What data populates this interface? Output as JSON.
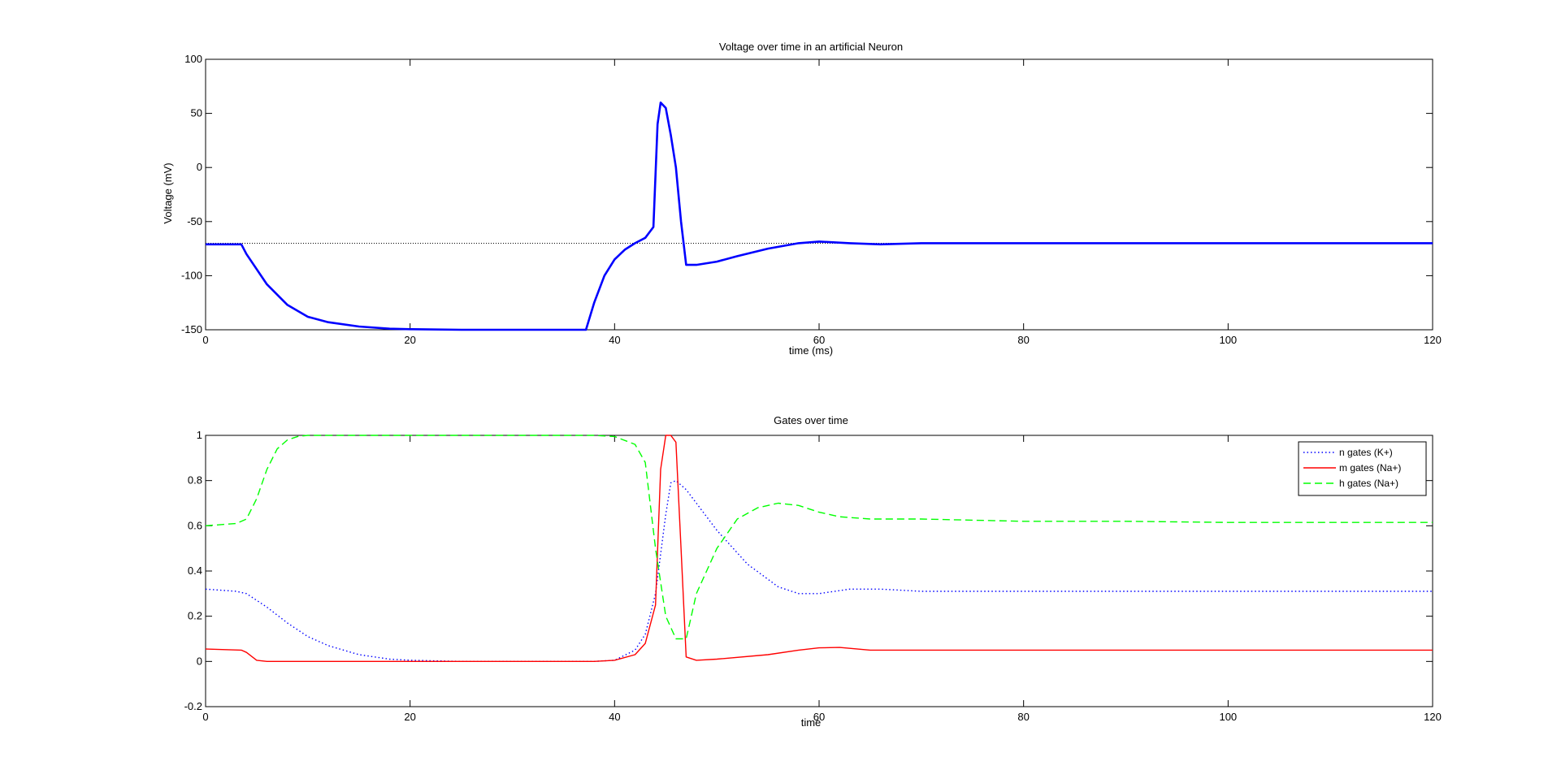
{
  "chart_data": [
    {
      "type": "line",
      "title": "Voltage over time in an artificial Neuron",
      "xlabel": "time (ms)",
      "ylabel": "Voltage (mV)",
      "xlim": [
        0,
        120
      ],
      "ylim": [
        -150,
        100
      ],
      "xticks": [
        "0",
        "20",
        "40",
        "60",
        "80",
        "100",
        "120"
      ],
      "yticks": [
        "100",
        "50",
        "0",
        "-50",
        "-100",
        "-150"
      ],
      "reference_line": {
        "y": -70,
        "style": "dotted",
        "color": "#000000"
      },
      "series": [
        {
          "color": "#0000ff",
          "style": "solid",
          "x": [
            0,
            3.5,
            4,
            6,
            8,
            10,
            12,
            15,
            18,
            20,
            25,
            30,
            35,
            37.2,
            38,
            39,
            40,
            41,
            42,
            43,
            43.8,
            44.2,
            44.5,
            45,
            45.5,
            46,
            46.5,
            47,
            48,
            50,
            52,
            55,
            58,
            60,
            63,
            66,
            70,
            80,
            90,
            100,
            110,
            120
          ],
          "y": [
            -71,
            -71,
            -80,
            -108,
            -127,
            -138,
            -143,
            -147,
            -149,
            -149.5,
            -150,
            -150,
            -150,
            -150,
            -125,
            -100,
            -85,
            -76,
            -70,
            -65,
            -55,
            40,
            60,
            55,
            30,
            0,
            -50,
            -90,
            -90,
            -87,
            -82,
            -75,
            -70,
            -68.5,
            -70,
            -71,
            -70,
            -70,
            -70,
            -70,
            -70,
            -70
          ]
        }
      ]
    },
    {
      "type": "line",
      "title": "Gates over time",
      "xlabel": "time",
      "ylabel": "",
      "xlim": [
        0,
        120
      ],
      "ylim": [
        -0.2,
        1
      ],
      "xticks": [
        "0",
        "20",
        "40",
        "60",
        "80",
        "100",
        "120"
      ],
      "yticks": [
        "1",
        "0.8",
        "0.6",
        "0.4",
        "0.2",
        "0",
        "-0.2"
      ],
      "legend": {
        "placement": "top-right"
      },
      "series": [
        {
          "name": "n gates (K+)",
          "color": "#0000ff",
          "style": "dotted",
          "x": [
            0,
            3,
            4,
            6,
            8,
            10,
            12,
            15,
            18,
            20,
            25,
            30,
            35,
            38,
            40,
            42,
            43,
            44,
            45,
            45.5,
            46,
            47,
            48,
            50,
            53,
            56,
            58,
            60,
            63,
            66,
            70,
            80,
            100,
            120
          ],
          "y": [
            0.32,
            0.31,
            0.3,
            0.24,
            0.17,
            0.11,
            0.07,
            0.03,
            0.01,
            0.005,
            0,
            0,
            0,
            0,
            0.005,
            0.05,
            0.12,
            0.3,
            0.65,
            0.79,
            0.8,
            0.76,
            0.7,
            0.58,
            0.43,
            0.33,
            0.3,
            0.3,
            0.32,
            0.32,
            0.31,
            0.31,
            0.31,
            0.31
          ]
        },
        {
          "name": "m gates (Na+)",
          "color": "#ff0000",
          "style": "solid",
          "x": [
            0,
            3.5,
            4,
            5,
            6,
            10,
            20,
            30,
            38,
            40,
            42,
            43,
            44,
            44.5,
            45,
            45.5,
            46,
            46.5,
            47,
            48,
            50,
            55,
            58,
            60,
            62,
            65,
            70,
            80,
            100,
            120
          ],
          "y": [
            0.055,
            0.05,
            0.04,
            0.005,
            0,
            0,
            0,
            0,
            0,
            0.005,
            0.03,
            0.08,
            0.25,
            0.85,
            1,
            1,
            0.97,
            0.5,
            0.02,
            0.005,
            0.01,
            0.03,
            0.05,
            0.06,
            0.062,
            0.05,
            0.05,
            0.05,
            0.05,
            0.05
          ]
        },
        {
          "name": "h gates (Na+)",
          "color": "#00ff00",
          "style": "dashed",
          "x": [
            0,
            3,
            4,
            5,
            6,
            7,
            8,
            9,
            10,
            20,
            38,
            40,
            42,
            43,
            44,
            45,
            46,
            47,
            48,
            50,
            52,
            54,
            56,
            58,
            60,
            62,
            65,
            70,
            80,
            90,
            100,
            110,
            120
          ],
          "y": [
            0.6,
            0.61,
            0.63,
            0.72,
            0.85,
            0.94,
            0.98,
            0.995,
            1,
            1,
            1,
            0.995,
            0.96,
            0.88,
            0.5,
            0.2,
            0.1,
            0.1,
            0.3,
            0.5,
            0.63,
            0.68,
            0.7,
            0.69,
            0.66,
            0.64,
            0.63,
            0.63,
            0.62,
            0.62,
            0.615,
            0.615,
            0.615
          ]
        }
      ]
    }
  ]
}
